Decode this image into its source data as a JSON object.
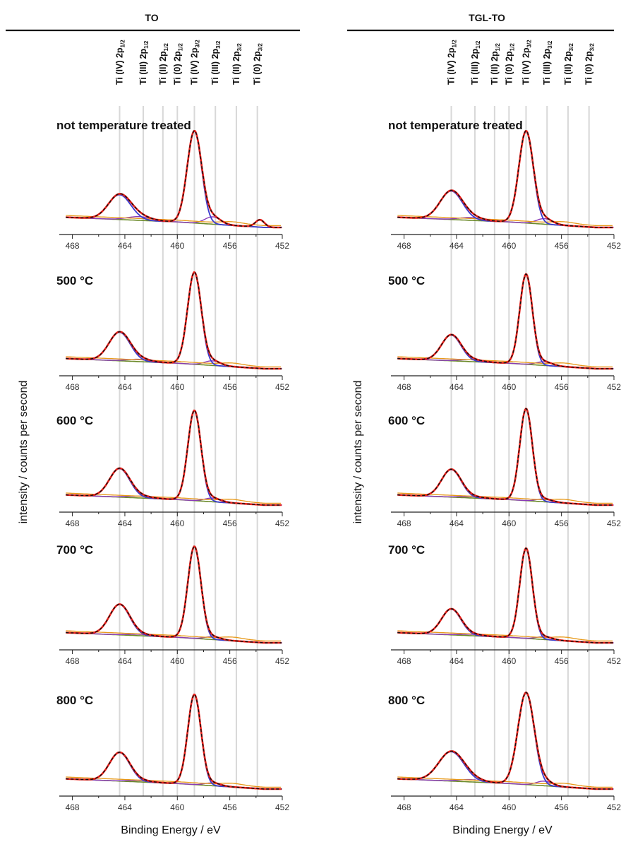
{
  "chart_data": {
    "type": "line",
    "xlabel": "Binding Energy / eV",
    "ylabel": "intensity / counts per second",
    "xlim": [
      469,
      452
    ],
    "x_ticks": [
      468,
      464,
      460,
      456,
      452
    ],
    "grid": false,
    "colors": {
      "measured": "#e8201a",
      "envelope": "#111111",
      "ti4_component": "#3a3acf",
      "ti3_component": "#8a3ab8",
      "ti2_component": "#e89a1a",
      "background": "#6b8a2a",
      "reference_line": "#d8d8d8"
    },
    "reference_lines": [
      {
        "label": "Ti (IV) 2p",
        "sub": "1/2",
        "x": 464.4
      },
      {
        "label": "Ti (III) 2p",
        "sub": "1/2",
        "x": 462.6
      },
      {
        "label": "Ti (II) 2p",
        "sub": "1/2",
        "x": 461.1
      },
      {
        "label": "Ti (0) 2p",
        "sub": "1/2",
        "x": 460.0
      },
      {
        "label": "Ti (IV) 2p",
        "sub": "3/2",
        "x": 458.7
      },
      {
        "label": "Ti (III) 2p",
        "sub": "3/2",
        "x": 457.1
      },
      {
        "label": "Ti (II) 2p",
        "sub": "3/2",
        "x": 455.5
      },
      {
        "label": "Ti (0) 2p",
        "sub": "3/2",
        "x": 453.9
      }
    ],
    "groups": [
      {
        "title": "TO",
        "panels": [
          {
            "label": "not temperature  treated",
            "peak_main": 458.7,
            "peak_main_height": 1.0,
            "peak_sec": 464.4,
            "peak_sec_height": 0.27,
            "width": 0.55,
            "ti3_height": 0.08,
            "metal_height": 0.08
          },
          {
            "label": "500 °C",
            "peak_main": 458.7,
            "peak_main_height": 1.0,
            "peak_sec": 464.4,
            "peak_sec_height": 0.31,
            "width": 0.52,
            "ti3_height": 0.05,
            "metal_height": 0
          },
          {
            "label": "600 °C",
            "peak_main": 458.7,
            "peak_main_height": 0.98,
            "peak_sec": 464.4,
            "peak_sec_height": 0.31,
            "width": 0.5,
            "ti3_height": 0.04,
            "metal_height": 0
          },
          {
            "label": "700 °C",
            "peak_main": 458.7,
            "peak_main_height": 1.0,
            "peak_sec": 464.4,
            "peak_sec_height": 0.33,
            "width": 0.5,
            "ti3_height": 0.03,
            "metal_height": 0
          },
          {
            "label": "800 °C",
            "peak_main": 458.7,
            "peak_main_height": 0.98,
            "peak_sec": 464.4,
            "peak_sec_height": 0.31,
            "width": 0.5,
            "ti3_height": 0.03,
            "metal_height": 0
          }
        ]
      },
      {
        "title": "TGL-TO",
        "panels": [
          {
            "label": "not temperature  treated",
            "peak_main": 458.7,
            "peak_main_height": 1.0,
            "peak_sec": 464.4,
            "peak_sec_height": 0.31,
            "width": 0.55,
            "ti3_height": 0.06,
            "metal_height": 0
          },
          {
            "label": "500 °C",
            "peak_main": 458.7,
            "peak_main_height": 0.98,
            "peak_sec": 464.4,
            "peak_sec_height": 0.28,
            "width": 0.48,
            "ti3_height": 0.04,
            "metal_height": 0
          },
          {
            "label": "600 °C",
            "peak_main": 458.7,
            "peak_main_height": 1.0,
            "peak_sec": 464.4,
            "peak_sec_height": 0.3,
            "width": 0.48,
            "ti3_height": 0.03,
            "metal_height": 0
          },
          {
            "label": "700 °C",
            "peak_main": 458.7,
            "peak_main_height": 0.98,
            "peak_sec": 464.4,
            "peak_sec_height": 0.28,
            "width": 0.48,
            "ti3_height": 0.03,
            "metal_height": 0
          },
          {
            "label": "800 °C",
            "peak_main": 458.7,
            "peak_main_height": 1.0,
            "peak_sec": 464.4,
            "peak_sec_height": 0.32,
            "width": 0.62,
            "ti3_height": 0.05,
            "metal_height": 0
          }
        ]
      }
    ]
  }
}
